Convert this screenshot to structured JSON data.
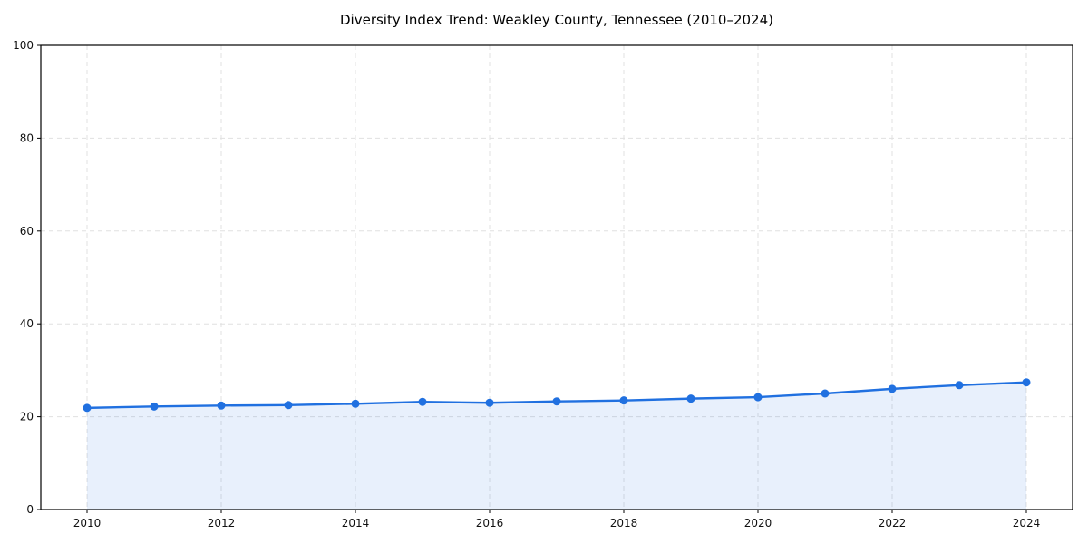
{
  "figure": {
    "background_color": "#ffffff"
  },
  "chart_data": {
    "type": "line",
    "title": "Diversity Index Trend: Weakley County, Tennessee (2010–2024)",
    "xlabel": "",
    "ylabel": "",
    "x": [
      2010,
      2011,
      2012,
      2013,
      2014,
      2015,
      2016,
      2017,
      2018,
      2019,
      2020,
      2021,
      2022,
      2023,
      2024
    ],
    "series": [
      {
        "name": "Diversity Index",
        "values": [
          21.9,
          22.2,
          22.4,
          22.5,
          22.8,
          23.2,
          23.0,
          23.3,
          23.5,
          23.9,
          24.2,
          25.0,
          26.0,
          26.8,
          27.4
        ]
      }
    ],
    "ylim": [
      0,
      100
    ],
    "xlim": [
      2009.3,
      2024.7
    ],
    "yticks": [
      0,
      20,
      40,
      60,
      80,
      100
    ],
    "xticks": [
      2010,
      2012,
      2014,
      2016,
      2018,
      2020,
      2022,
      2024
    ],
    "grid": true,
    "grid_style": "dashed",
    "legend": false,
    "marker": "circle",
    "area_fill": true,
    "line_color": "#2070e0",
    "marker_color": "#2070e0",
    "fill_color": "#2070e0",
    "fill_opacity": 0.1,
    "grid_color": "#e0e0e0",
    "text_color": "#111111",
    "frame_color": "#000000"
  }
}
